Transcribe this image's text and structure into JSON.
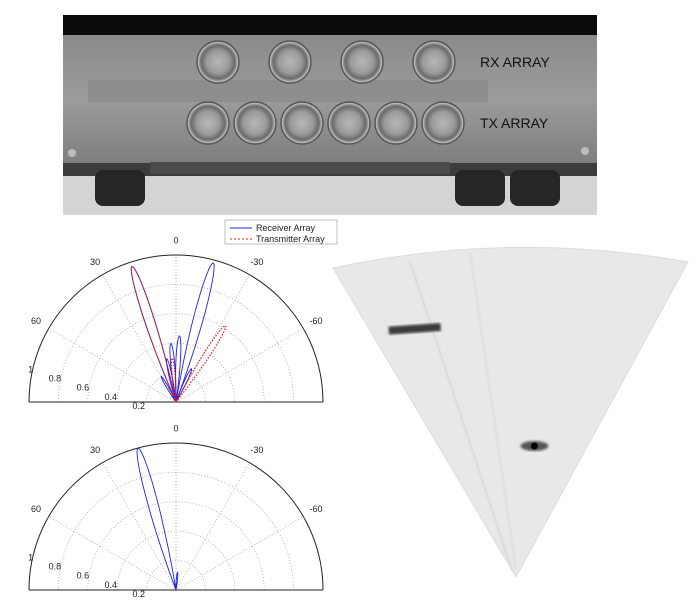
{
  "photo": {
    "rx_label": "RX ARRAY",
    "tx_label": "TX ARRAY",
    "rx_count": 4,
    "tx_count": 6
  },
  "legend": {
    "receiver": "Receiver Array",
    "transmitter": "Transmitter Array"
  },
  "polar_axis": {
    "angle_labels": [
      "0",
      "30",
      "-30",
      "60",
      "-60"
    ],
    "radial_labels": [
      "1",
      "0.8",
      "0.6",
      "0.4",
      "0.2"
    ]
  },
  "chart_data": [
    {
      "type": "polar",
      "title": "",
      "series": [
        {
          "name": "Receiver Array",
          "color": "#2020e0",
          "lobes": [
            {
              "angle": -15,
              "r": 0.98
            },
            {
              "angle": 18,
              "r": 0.97
            },
            {
              "angle": -3,
              "r": 0.45
            },
            {
              "angle": 5,
              "r": 0.4
            },
            {
              "angle": 12,
              "r": 0.3
            },
            {
              "angle": -25,
              "r": 0.25
            },
            {
              "angle": 30,
              "r": 0.2
            }
          ]
        },
        {
          "name": "Transmitter Array",
          "color": "#e02020",
          "lobes": [
            {
              "angle": 18,
              "r": 0.97
            },
            {
              "angle": -33,
              "r": 0.62
            },
            {
              "angle": 5,
              "r": 0.3
            }
          ]
        }
      ]
    },
    {
      "type": "polar",
      "title": "",
      "series": [
        {
          "name": "Receiver Array",
          "color": "#2020e0",
          "lobes": [
            {
              "angle": 15,
              "r": 1.0
            },
            {
              "angle": -5,
              "r": 0.12
            }
          ]
        }
      ]
    }
  ],
  "image_targets": [
    {
      "kind": "streak",
      "range": 0.85,
      "angle": -22
    },
    {
      "kind": "point",
      "range": 0.42,
      "angle": 8
    }
  ]
}
